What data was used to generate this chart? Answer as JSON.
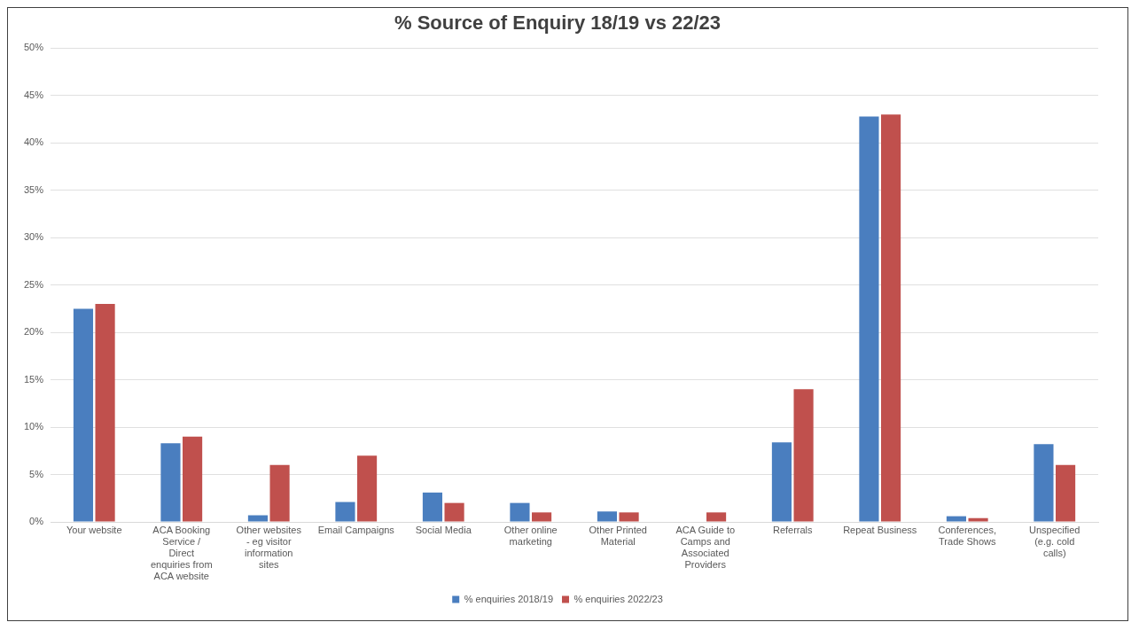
{
  "chart_data": {
    "type": "bar",
    "title": "% Source of Enquiry 18/19 vs 22/23",
    "categories": [
      "Your website",
      "ACA Booking Service / Direct enquiries from ACA website",
      "Other websites - eg visitor information sites",
      "Email Campaigns",
      "Social Media",
      "Other online marketing",
      "Other Printed Material",
      "ACA Guide to Camps and Associated Providers",
      "Referrals",
      "Repeat Business",
      "Conferences, Trade Shows",
      "Unspecified (e.g. cold calls)"
    ],
    "series": [
      {
        "name": "% enquiries 2018/19",
        "color": "#4a7ebf",
        "values": [
          22.5,
          8.3,
          0.7,
          2.1,
          3.1,
          2,
          1.1,
          0,
          8.4,
          42.8,
          0.6,
          8.2
        ]
      },
      {
        "name": "% enquiries 2022/23",
        "color": "#c0504d",
        "values": [
          23,
          9,
          6,
          7,
          2,
          1,
          1,
          1,
          14,
          43,
          0.4,
          6
        ]
      }
    ],
    "ylim": [
      0,
      50
    ],
    "yticks": [
      {
        "value": 0,
        "label": "0%"
      },
      {
        "value": 5,
        "label": "5%"
      },
      {
        "value": 10,
        "label": "10%"
      },
      {
        "value": 15,
        "label": "15%"
      },
      {
        "value": 20,
        "label": "20%"
      },
      {
        "value": 25,
        "label": "25%"
      },
      {
        "value": 30,
        "label": "30%"
      },
      {
        "value": 35,
        "label": "35%"
      },
      {
        "value": 40,
        "label": "40%"
      },
      {
        "value": 45,
        "label": "45%"
      },
      {
        "value": 50,
        "label": "50%"
      }
    ],
    "grid": "y",
    "legend": "bottom"
  }
}
